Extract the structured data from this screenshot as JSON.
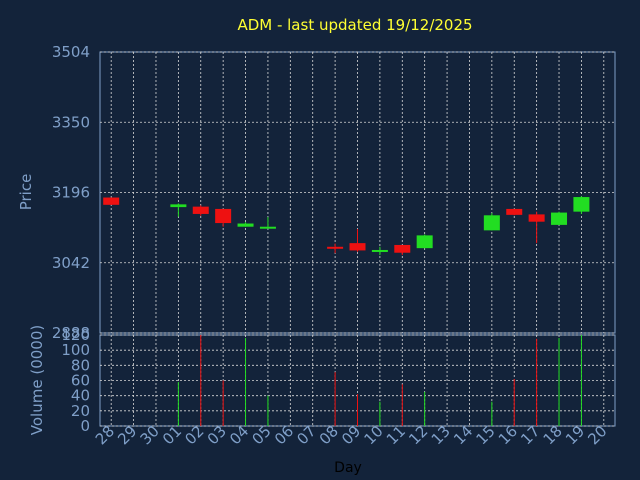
{
  "chart_data": [
    {
      "type": "candlestick",
      "title": "ADM - last updated 19/12/2025",
      "ylabel": "Price",
      "ylim": [
        2888,
        3504
      ],
      "yticks": [
        2888,
        3042,
        3196,
        3350,
        3504
      ],
      "grid": true,
      "colors": {
        "up": "#22dd22",
        "down": "#ee1111",
        "background": "#13233a",
        "text": "#7f9fc8",
        "title": "#ffff33"
      },
      "x": [
        "28",
        "29",
        "30",
        "01",
        "02",
        "03",
        "04",
        "05",
        "06",
        "07",
        "08",
        "09",
        "10",
        "11",
        "12",
        "13",
        "14",
        "15",
        "16",
        "17",
        "18",
        "19",
        "20"
      ],
      "candles": [
        {
          "x": "28",
          "open": 3185,
          "close": 3169,
          "high": 3185,
          "low": 3169
        },
        {
          "x": "01",
          "open": 3164,
          "close": 3170,
          "high": 3172,
          "low": 3143
        },
        {
          "x": "02",
          "open": 3165,
          "close": 3149,
          "high": 3168,
          "low": 3145
        },
        {
          "x": "03",
          "open": 3160,
          "close": 3129,
          "high": 3160,
          "low": 3121
        },
        {
          "x": "04",
          "open": 3121,
          "close": 3128,
          "high": 3131,
          "low": 3121
        },
        {
          "x": "05",
          "open": 3118,
          "close": 3121,
          "high": 3142,
          "low": 3118
        },
        {
          "x": "08",
          "open": 3077,
          "close": 3074,
          "high": 3084,
          "low": 3063
        },
        {
          "x": "09",
          "open": 3085,
          "close": 3069,
          "high": 3116,
          "low": 3066
        },
        {
          "x": "10",
          "open": 3066,
          "close": 3070,
          "high": 3077,
          "low": 3059
        },
        {
          "x": "11",
          "open": 3081,
          "close": 3064,
          "high": 3081,
          "low": 3059
        },
        {
          "x": "12",
          "open": 3074,
          "close": 3102,
          "high": 3104,
          "low": 3074
        },
        {
          "x": "15",
          "open": 3113,
          "close": 3146,
          "high": 3151,
          "low": 3113
        },
        {
          "x": "16",
          "open": 3160,
          "close": 3147,
          "high": 3160,
          "low": 3146
        },
        {
          "x": "17",
          "open": 3148,
          "close": 3132,
          "high": 3154,
          "low": 3085
        },
        {
          "x": "18",
          "open": 3125,
          "close": 3152,
          "high": 3154,
          "low": 3125
        },
        {
          "x": "19",
          "open": 3154,
          "close": 3186,
          "high": 3188,
          "low": 3149
        }
      ]
    },
    {
      "type": "bar",
      "ylabel": "Volume (0000)",
      "xlabel": "Day",
      "ylim": [
        0,
        120
      ],
      "yticks": [
        0,
        20,
        40,
        60,
        80,
        100,
        120
      ],
      "grid": true,
      "x": [
        "28",
        "29",
        "30",
        "01",
        "02",
        "03",
        "04",
        "05",
        "06",
        "07",
        "08",
        "09",
        "10",
        "11",
        "12",
        "13",
        "14",
        "15",
        "16",
        "17",
        "18",
        "19",
        "20"
      ],
      "bars": [
        {
          "x": "01",
          "value": 58,
          "direction": "up"
        },
        {
          "x": "02",
          "value": 120,
          "direction": "down"
        },
        {
          "x": "03",
          "value": 60,
          "direction": "down"
        },
        {
          "x": "04",
          "value": 116,
          "direction": "up"
        },
        {
          "x": "05",
          "value": 40,
          "direction": "up"
        },
        {
          "x": "08",
          "value": 71,
          "direction": "down"
        },
        {
          "x": "09",
          "value": 42,
          "direction": "down"
        },
        {
          "x": "10",
          "value": 32,
          "direction": "up"
        },
        {
          "x": "11",
          "value": 55,
          "direction": "down"
        },
        {
          "x": "12",
          "value": 45,
          "direction": "up"
        },
        {
          "x": "15",
          "value": 32,
          "direction": "up"
        },
        {
          "x": "16",
          "value": 62,
          "direction": "down"
        },
        {
          "x": "17",
          "value": 115,
          "direction": "down"
        },
        {
          "x": "18",
          "value": 116,
          "direction": "up"
        },
        {
          "x": "19",
          "value": 120,
          "direction": "up"
        }
      ]
    }
  ]
}
